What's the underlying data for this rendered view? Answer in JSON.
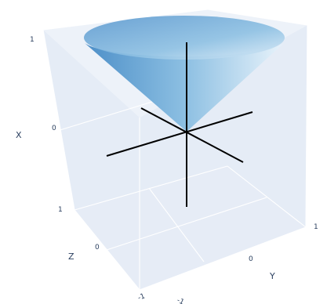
{
  "chart_data": {
    "type": "surface3d",
    "description_shape": "cone",
    "surface": {
      "equation": "z = sqrt(x^2 + y^2)",
      "z_range": [
        0,
        1
      ],
      "apex": [
        0,
        0,
        0
      ],
      "rim_radius": 1,
      "colors": {
        "light": "#e8f3fb",
        "mid": "#8cbfe2",
        "dark": "#4d8fc8"
      }
    },
    "axis_lines": {
      "x": [
        -1,
        1
      ],
      "y": [
        -1,
        1
      ],
      "z": [
        -1,
        1
      ],
      "color": "#000000"
    },
    "axes": {
      "x": {
        "title": "X",
        "range": [
          -1,
          1
        ],
        "ticks": [
          "1",
          "0"
        ]
      },
      "y": {
        "title": "Y",
        "range": [
          -1,
          1
        ],
        "ticks": [
          "-1",
          "0",
          "1"
        ]
      },
      "z": {
        "title": "Z",
        "range": [
          -1,
          1
        ],
        "ticks": [
          "1",
          "0",
          "-1"
        ]
      }
    },
    "scene": {
      "background": "#e5ecf6",
      "grid": true,
      "gridcolor": "#ffffff"
    }
  }
}
